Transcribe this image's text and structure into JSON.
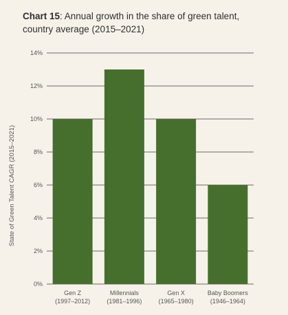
{
  "chart_data": {
    "type": "bar",
    "title_prefix": "Chart 15",
    "title": ": Annual growth in the share of green talent,",
    "subtitle": "country average (2015–2021)",
    "ylabel": "State of Green Talent CAGR (2015–2021)",
    "xlabel": "",
    "categories": [
      {
        "name": "Gen Z",
        "range": "(1997–2012)"
      },
      {
        "name": "Millennials",
        "range": "(1981–1996)"
      },
      {
        "name": "Gen X",
        "range": "(1965–1980)"
      },
      {
        "name": "Baby Boomers",
        "range": "(1946–1964)"
      }
    ],
    "values": [
      10,
      13,
      10,
      6
    ],
    "ylim": [
      0,
      14
    ],
    "yticks": [
      0,
      2,
      4,
      6,
      8,
      10,
      12,
      14
    ],
    "ytick_labels": [
      "0%",
      "2%",
      "4%",
      "6%",
      "8%",
      "10%",
      "12%",
      "14%"
    ],
    "grid": true,
    "colors": {
      "bar": "#466f2e",
      "grid": "#3a3a3a",
      "background": "#f7f2e9"
    }
  }
}
